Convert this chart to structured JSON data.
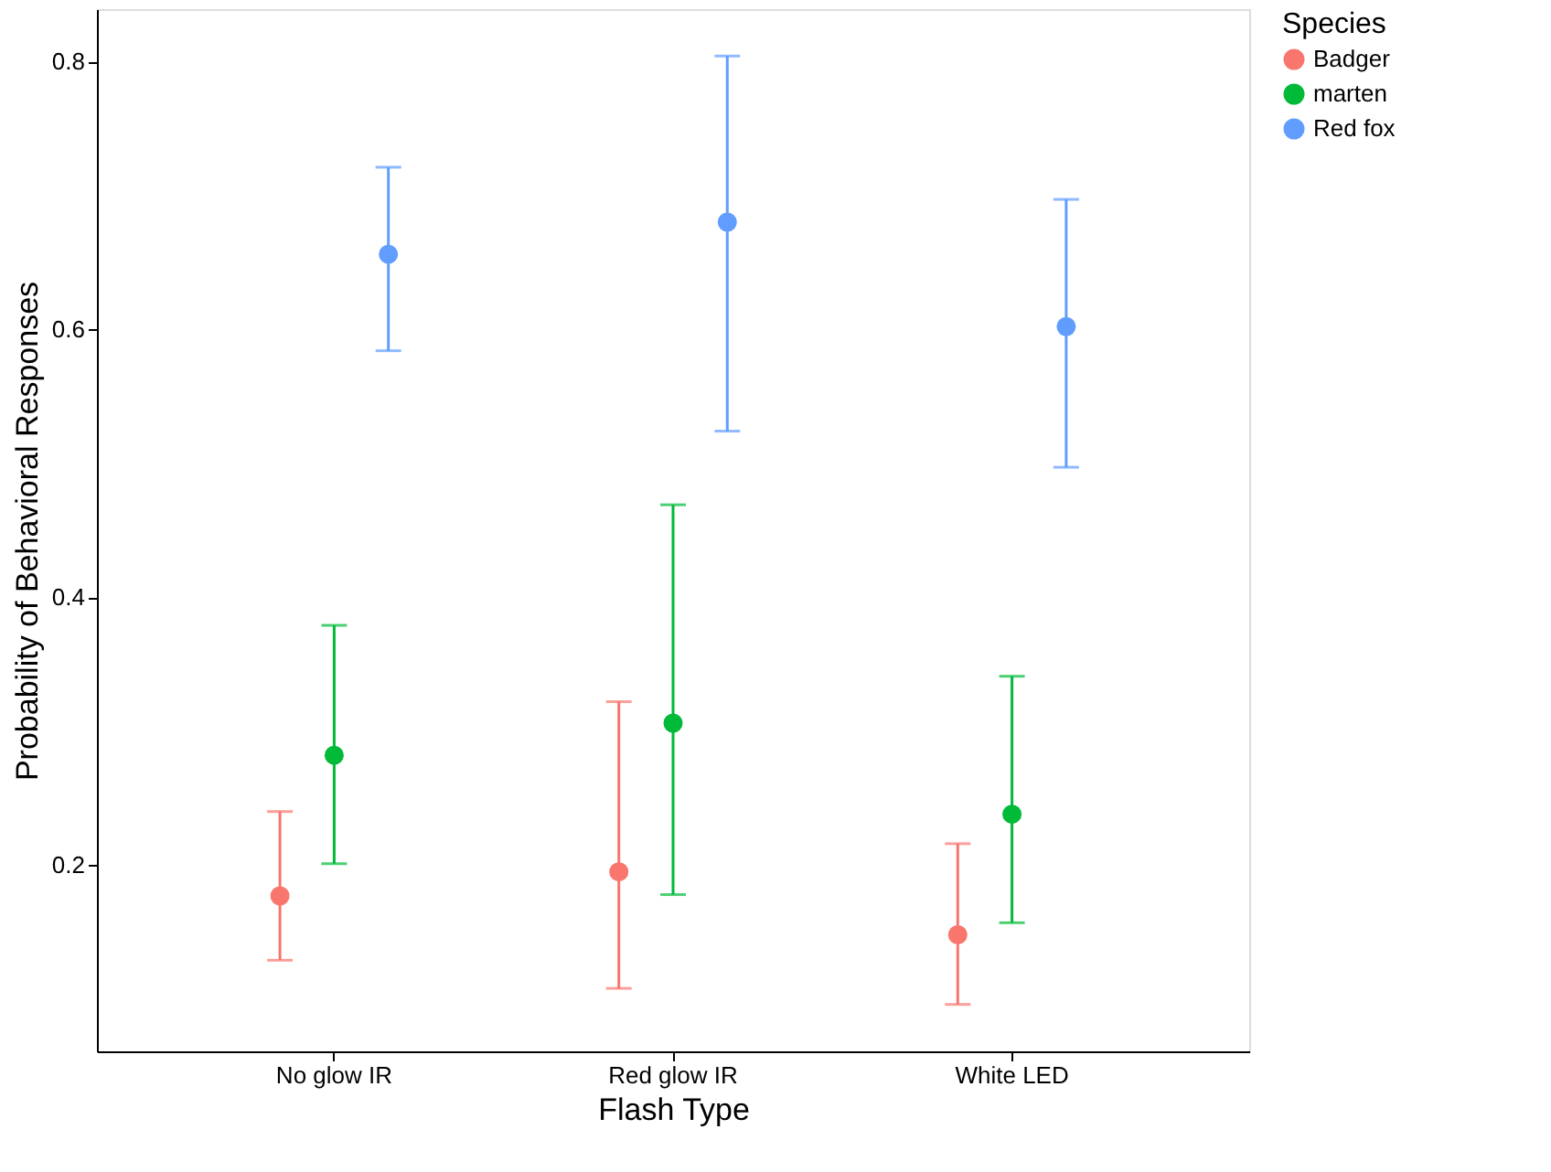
{
  "chart_data": {
    "type": "scatter",
    "xlabel": "Flash Type",
    "ylabel": "Probability of Behavioral Responses",
    "legend_title": "Species",
    "legend": "right",
    "grid": false,
    "marker": "circle",
    "categories": [
      "No glow IR",
      "Red glow IR",
      "White LED"
    ],
    "ylim": [
      0.061,
      0.839
    ],
    "yticks": [
      0.2,
      0.4,
      0.6,
      0.8
    ],
    "series": [
      {
        "name": "Badger",
        "color": "#f8766d",
        "values": [
          0.177,
          0.195,
          0.148
        ],
        "errors": [
          [
            0.129,
            0.24
          ],
          [
            0.108,
            0.322
          ],
          [
            0.096,
            0.216
          ]
        ]
      },
      {
        "name": "marten",
        "color": "#00ba38",
        "values": [
          0.282,
          0.306,
          0.238
        ],
        "errors": [
          [
            0.201,
            0.379
          ],
          [
            0.178,
            0.469
          ],
          [
            0.157,
            0.341
          ]
        ]
      },
      {
        "name": "Red fox",
        "color": "#619cff",
        "values": [
          0.656,
          0.68,
          0.602
        ],
        "errors": [
          [
            0.584,
            0.721
          ],
          [
            0.524,
            0.804
          ],
          [
            0.497,
            0.697
          ]
        ]
      }
    ]
  }
}
